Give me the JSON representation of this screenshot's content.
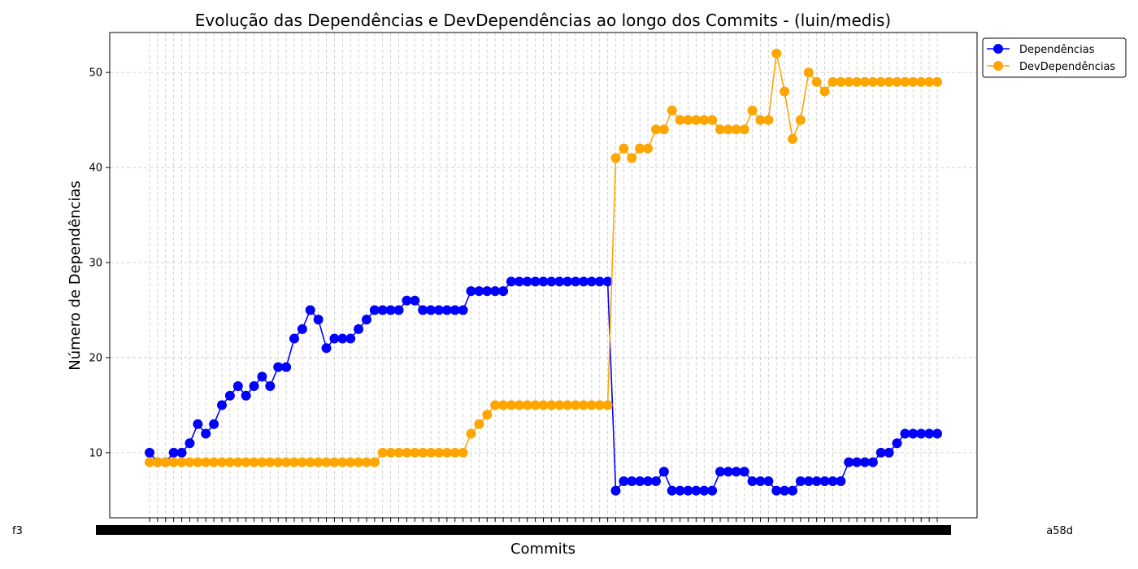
{
  "chart_data": {
    "type": "line",
    "title": "Evolução das Dependências e DevDependências ao longo dos Commits - (luin/medis)",
    "xlabel": "Commits",
    "ylabel": "Número de Dependências",
    "x_tick_label_first": "f3",
    "x_tick_label_last": "a58d",
    "ylim": [
      3.15,
      54.2
    ],
    "yticks": [
      10,
      20,
      30,
      40,
      50
    ],
    "grid": true,
    "legend_position": "top-right-outside",
    "series": [
      {
        "name": "Dependências",
        "color": "#0000ff",
        "values": [
          10,
          9,
          9,
          10,
          10,
          11,
          13,
          12,
          13,
          15,
          16,
          17,
          16,
          17,
          18,
          17,
          19,
          19,
          22,
          23,
          25,
          24,
          21,
          22,
          22,
          22,
          23,
          24,
          25,
          25,
          25,
          25,
          26,
          26,
          25,
          25,
          25,
          25,
          25,
          25,
          27,
          27,
          27,
          27,
          27,
          28,
          28,
          28,
          28,
          28,
          28,
          28,
          28,
          28,
          28,
          28,
          28,
          28,
          6,
          7,
          7,
          7,
          7,
          7,
          8,
          6,
          6,
          6,
          6,
          6,
          6,
          8,
          8,
          8,
          8,
          7,
          7,
          7,
          6,
          6,
          6,
          7,
          7,
          7,
          7,
          7,
          7,
          9,
          9,
          9,
          9,
          10,
          10,
          11,
          12,
          12,
          12,
          12,
          12
        ]
      },
      {
        "name": "DevDependências",
        "color": "#ffa500",
        "values": [
          9,
          9,
          9,
          9,
          9,
          9,
          9,
          9,
          9,
          9,
          9,
          9,
          9,
          9,
          9,
          9,
          9,
          9,
          9,
          9,
          9,
          9,
          9,
          9,
          9,
          9,
          9,
          9,
          9,
          10,
          10,
          10,
          10,
          10,
          10,
          10,
          10,
          10,
          10,
          10,
          12,
          13,
          14,
          15,
          15,
          15,
          15,
          15,
          15,
          15,
          15,
          15,
          15,
          15,
          15,
          15,
          15,
          15,
          41,
          42,
          41,
          42,
          42,
          44,
          44,
          46,
          45,
          45,
          45,
          45,
          45,
          44,
          44,
          44,
          44,
          46,
          45,
          45,
          52,
          48,
          43,
          45,
          50,
          49,
          48,
          49,
          49,
          49,
          49,
          49,
          49,
          49,
          49,
          49,
          49,
          49,
          49,
          49,
          49
        ]
      }
    ]
  }
}
